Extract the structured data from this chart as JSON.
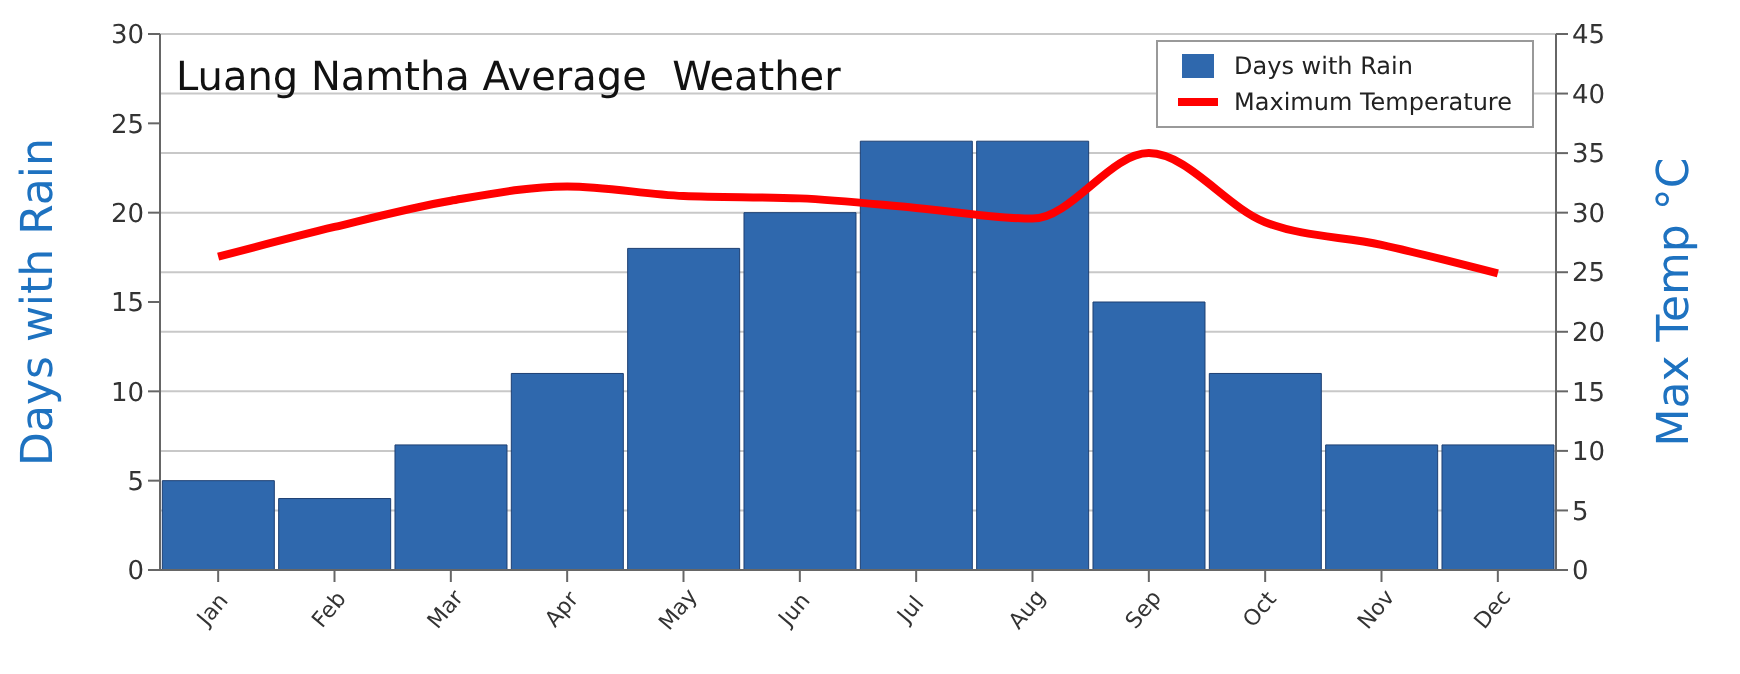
{
  "chart_data": {
    "type": "bar",
    "title": "Luang Namtha Average  Weather",
    "ylabel": "Days with Rain",
    "y2label": "Max Temp °C",
    "categories": [
      "Jan",
      "Feb",
      "Mar",
      "Apr",
      "May",
      "Jun",
      "Jul",
      "Aug",
      "Sep",
      "Oct",
      "Nov",
      "Dec"
    ],
    "series": [
      {
        "name": "Days with Rain",
        "color": "#2f68ad",
        "values": [
          5,
          4,
          7,
          11,
          18,
          20,
          24,
          24,
          15,
          11,
          7,
          7
        ]
      },
      {
        "name": "Maximum Temperature",
        "type": "line",
        "axis": "y2",
        "color": "#ff0000",
        "values": [
          26.3,
          28.8,
          31,
          32.2,
          31.4,
          31.2,
          30.4,
          29.5,
          35,
          29.2,
          27.3,
          24.9
        ]
      }
    ],
    "ylim": [
      0,
      30
    ],
    "yticks": [
      0,
      5,
      10,
      15,
      20,
      25,
      30
    ],
    "y2lim": [
      0,
      45
    ],
    "y2ticks": [
      0,
      5,
      10,
      15,
      20,
      25,
      30,
      35,
      40,
      45
    ],
    "grid": "y2",
    "legend": "top right",
    "marker": "none"
  }
}
